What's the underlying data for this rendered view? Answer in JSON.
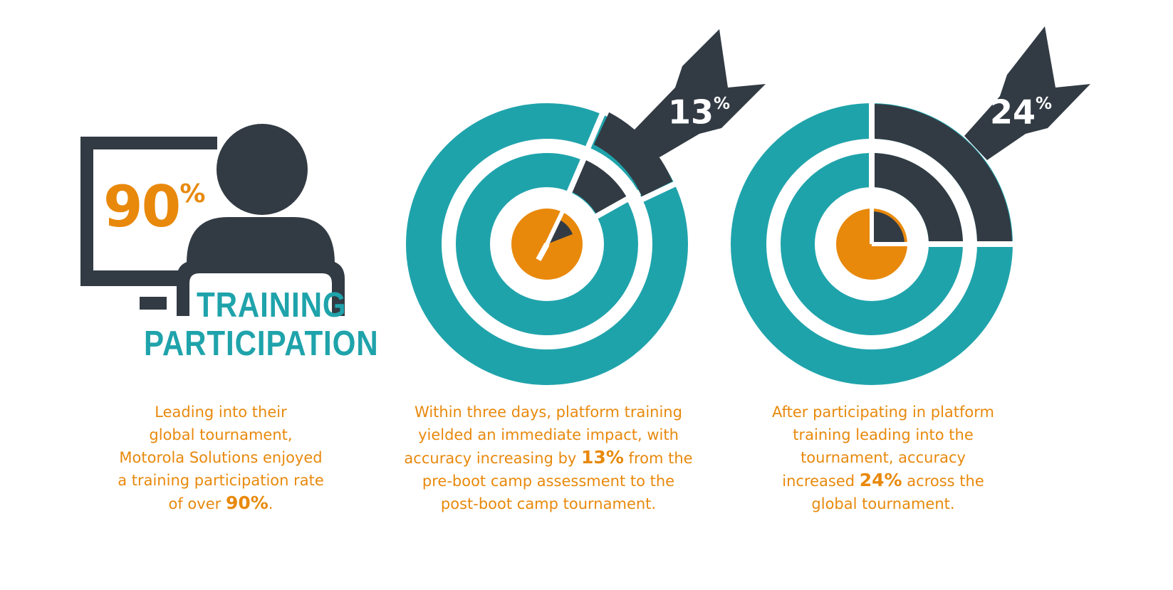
{
  "colors": {
    "teal": "#1fa3ab",
    "dark": "#323b44",
    "orange": "#e8890c",
    "white": "#ffffff"
  },
  "participation": {
    "icon": "monitor-person-icon",
    "value_number": "90",
    "value_symbol": "%",
    "value_fraction": 0.9,
    "title_line1": "TRAINING",
    "title_line2": "PARTICIPATION",
    "caption": {
      "lines": [
        "Leading into their",
        "global tournament,",
        "Motorola Solutions enjoyed",
        "a training participation rate"
      ],
      "last_prefix": "of over ",
      "highlight": "90%",
      "last_suffix": "."
    }
  },
  "accuracy_boot_camp": {
    "icon": "target-arrow-icon",
    "badge_number": "13",
    "badge_symbol": "%",
    "value_fraction": 0.13,
    "caption": {
      "line1": "Within three days, platform training",
      "line2": "yielded an immediate impact, with",
      "line3_prefix": "accuracy increasing by ",
      "highlight": "13%",
      "line3_suffix": " from the",
      "line4": "pre-boot camp assessment to the",
      "line5": "post-boot camp tournament."
    }
  },
  "accuracy_tournament": {
    "icon": "target-arrow-icon",
    "badge_number": "24",
    "badge_symbol": "%",
    "value_fraction": 0.24,
    "caption": {
      "line1": "After participating in platform",
      "line2": "training leading into the",
      "line3": "tournament, accuracy",
      "line4_prefix": "increased ",
      "highlight": "24%",
      "line4_suffix": " across the",
      "line5": "global tournament."
    }
  }
}
